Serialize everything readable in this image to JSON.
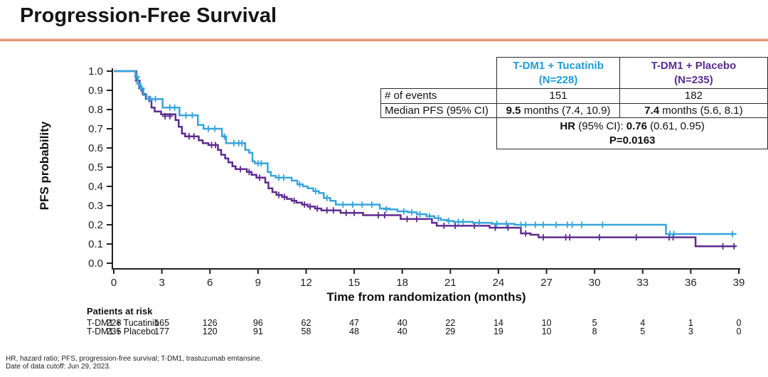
{
  "slide": {
    "title": "Progression-Free Survival",
    "accent_color": "#d98560",
    "footnotes": [
      "HR, hazard ratio; PFS, progression-free survival; T-DM1, trastuzumab emtansine.",
      "Date of data cutoff: Jun 29, 2023."
    ]
  },
  "stats_table": {
    "col_headers": [
      {
        "lines": [
          "T-DM1 + Tucatinib",
          "(N=228)"
        ],
        "color": "#1e9cd7"
      },
      {
        "lines": [
          "T-DM1 + Placebo",
          "(N=235)"
        ],
        "color": "#5c2d91"
      }
    ],
    "rows": [
      {
        "label": "# of events",
        "values": [
          [
            {
              "t": "151"
            }
          ],
          [
            {
              "t": "182"
            }
          ]
        ]
      },
      {
        "label": "Median PFS (95% CI)",
        "values": [
          [
            {
              "t": "9.5",
              "b": 1
            },
            {
              "t": " months (7.4, 10.9)"
            }
          ],
          [
            {
              "t": "7.4",
              "b": 1
            },
            {
              "t": " months (5.6, 8.1)"
            }
          ]
        ]
      }
    ],
    "footer_lines": [
      [
        {
          "t": "HR",
          "b": 1
        },
        {
          "t": " (95% CI): "
        },
        {
          "t": "0.76",
          "b": 1
        },
        {
          "t": " (0.61, 0.95)"
        }
      ],
      [
        {
          "t": "P=0.0163",
          "b": 1
        }
      ]
    ]
  },
  "chart_data": {
    "type": "line",
    "subtype": "kaplan-meier-step",
    "title": "Progression-Free Survival",
    "xlabel": "Time from randomization (months)",
    "ylabel": "PFS probability",
    "xlim": [
      0,
      39
    ],
    "ylim": [
      0.0,
      1.0
    ],
    "x_ticks": [
      0,
      3,
      6,
      9,
      12,
      15,
      18,
      21,
      24,
      27,
      30,
      33,
      36,
      39
    ],
    "y_ticks": [
      "1.0",
      "0.9",
      "0.8",
      "0.7",
      "0.6",
      "0.5",
      "0.4",
      "0.3",
      "0.2",
      "0.1",
      "0.0"
    ],
    "grid": false,
    "legend": "none (identified in stats table and risk table)",
    "axis_color": "#231f20",
    "series": [
      {
        "name": "T-DM1 + Tucatinib",
        "n": 228,
        "events": 151,
        "median_pfs_months": 9.5,
        "median_ci": [
          7.4,
          10.9
        ],
        "color": "#38a4db",
        "steps": [
          [
            0,
            1.0
          ],
          [
            1.2,
            1.0
          ],
          [
            1.35,
            0.97
          ],
          [
            1.5,
            0.935
          ],
          [
            1.65,
            0.91
          ],
          [
            1.85,
            0.875
          ],
          [
            2.05,
            0.855
          ],
          [
            3.05,
            0.81
          ],
          [
            4.1,
            0.77
          ],
          [
            5.25,
            0.72
          ],
          [
            5.6,
            0.7
          ],
          [
            6.75,
            0.66
          ],
          [
            7.0,
            0.625
          ],
          [
            8.2,
            0.59
          ],
          [
            8.45,
            0.575
          ],
          [
            8.65,
            0.53
          ],
          [
            8.8,
            0.52
          ],
          [
            9.6,
            0.475
          ],
          [
            9.8,
            0.455
          ],
          [
            10.1,
            0.445
          ],
          [
            11.1,
            0.43
          ],
          [
            11.45,
            0.41
          ],
          [
            11.8,
            0.4
          ],
          [
            12.1,
            0.39
          ],
          [
            12.45,
            0.375
          ],
          [
            12.8,
            0.365
          ],
          [
            13.1,
            0.34
          ],
          [
            13.5,
            0.325
          ],
          [
            13.85,
            0.305
          ],
          [
            16.6,
            0.285
          ],
          [
            17.2,
            0.28
          ],
          [
            17.7,
            0.27
          ],
          [
            18.35,
            0.265
          ],
          [
            18.9,
            0.255
          ],
          [
            19.5,
            0.245
          ],
          [
            20.0,
            0.235
          ],
          [
            20.4,
            0.225
          ],
          [
            20.8,
            0.22
          ],
          [
            21.2,
            0.215
          ],
          [
            22.4,
            0.21
          ],
          [
            23.6,
            0.205
          ],
          [
            25.0,
            0.2
          ],
          [
            34.45,
            0.152
          ],
          [
            38.85,
            0.152
          ]
        ],
        "censors": [
          [
            1.45,
            0.97
          ],
          [
            1.55,
            0.935
          ],
          [
            1.75,
            0.91
          ],
          [
            2.3,
            0.855
          ],
          [
            2.6,
            0.855
          ],
          [
            3.5,
            0.81
          ],
          [
            3.8,
            0.81
          ],
          [
            4.5,
            0.77
          ],
          [
            4.9,
            0.77
          ],
          [
            5.9,
            0.7
          ],
          [
            6.3,
            0.7
          ],
          [
            6.9,
            0.66
          ],
          [
            7.5,
            0.625
          ],
          [
            7.8,
            0.625
          ],
          [
            8.0,
            0.625
          ],
          [
            9.0,
            0.52
          ],
          [
            9.2,
            0.52
          ],
          [
            10.3,
            0.445
          ],
          [
            10.6,
            0.445
          ],
          [
            11.6,
            0.41
          ],
          [
            12.6,
            0.375
          ],
          [
            13.3,
            0.34
          ],
          [
            14.3,
            0.305
          ],
          [
            14.9,
            0.305
          ],
          [
            15.5,
            0.305
          ],
          [
            16.1,
            0.305
          ],
          [
            17.0,
            0.28
          ],
          [
            18.1,
            0.27
          ],
          [
            18.6,
            0.265
          ],
          [
            19.1,
            0.255
          ],
          [
            19.7,
            0.245
          ],
          [
            20.25,
            0.235
          ],
          [
            20.9,
            0.22
          ],
          [
            21.5,
            0.215
          ],
          [
            21.8,
            0.215
          ],
          [
            22.8,
            0.21
          ],
          [
            23.9,
            0.205
          ],
          [
            24.5,
            0.205
          ],
          [
            25.4,
            0.2
          ],
          [
            25.7,
            0.2
          ],
          [
            26.3,
            0.2
          ],
          [
            26.8,
            0.2
          ],
          [
            27.6,
            0.2
          ],
          [
            28.3,
            0.2
          ],
          [
            28.6,
            0.2
          ],
          [
            29.2,
            0.2
          ],
          [
            30.5,
            0.2
          ],
          [
            34.7,
            0.152
          ],
          [
            34.95,
            0.152
          ],
          [
            38.6,
            0.152
          ]
        ]
      },
      {
        "name": "T-DM1 + Placebo",
        "n": 235,
        "events": 182,
        "median_pfs_months": 7.4,
        "median_ci": [
          5.6,
          8.1
        ],
        "color": "#5e2c8f",
        "steps": [
          [
            0,
            1.0
          ],
          [
            1.2,
            1.0
          ],
          [
            1.4,
            0.95
          ],
          [
            1.6,
            0.91
          ],
          [
            1.8,
            0.88
          ],
          [
            2.0,
            0.855
          ],
          [
            2.35,
            0.81
          ],
          [
            2.55,
            0.79
          ],
          [
            2.95,
            0.775
          ],
          [
            3.85,
            0.745
          ],
          [
            4.05,
            0.71
          ],
          [
            4.25,
            0.675
          ],
          [
            4.45,
            0.66
          ],
          [
            5.3,
            0.64
          ],
          [
            5.55,
            0.625
          ],
          [
            5.9,
            0.615
          ],
          [
            6.5,
            0.59
          ],
          [
            6.7,
            0.565
          ],
          [
            6.95,
            0.545
          ],
          [
            7.15,
            0.525
          ],
          [
            7.4,
            0.505
          ],
          [
            7.6,
            0.49
          ],
          [
            8.3,
            0.475
          ],
          [
            8.6,
            0.46
          ],
          [
            8.9,
            0.445
          ],
          [
            9.45,
            0.42
          ],
          [
            9.65,
            0.39
          ],
          [
            9.9,
            0.37
          ],
          [
            10.15,
            0.355
          ],
          [
            10.5,
            0.345
          ],
          [
            10.8,
            0.335
          ],
          [
            11.1,
            0.325
          ],
          [
            11.4,
            0.315
          ],
          [
            11.75,
            0.305
          ],
          [
            12.1,
            0.295
          ],
          [
            12.55,
            0.285
          ],
          [
            12.95,
            0.275
          ],
          [
            14.15,
            0.262
          ],
          [
            15.55,
            0.25
          ],
          [
            17.9,
            0.23
          ],
          [
            19.85,
            0.21
          ],
          [
            20.15,
            0.195
          ],
          [
            23.45,
            0.185
          ],
          [
            25.4,
            0.155
          ],
          [
            26.0,
            0.148
          ],
          [
            26.5,
            0.135
          ],
          [
            36.3,
            0.088
          ],
          [
            38.8,
            0.088
          ]
        ],
        "censors": [
          [
            1.5,
            0.95
          ],
          [
            1.7,
            0.91
          ],
          [
            2.2,
            0.855
          ],
          [
            3.2,
            0.765
          ],
          [
            3.5,
            0.765
          ],
          [
            4.7,
            0.66
          ],
          [
            5.0,
            0.66
          ],
          [
            6.1,
            0.615
          ],
          [
            6.35,
            0.615
          ],
          [
            7.9,
            0.49
          ],
          [
            8.45,
            0.475
          ],
          [
            9.1,
            0.445
          ],
          [
            10.3,
            0.355
          ],
          [
            10.65,
            0.345
          ],
          [
            11.25,
            0.325
          ],
          [
            11.9,
            0.305
          ],
          [
            12.25,
            0.295
          ],
          [
            12.7,
            0.285
          ],
          [
            13.3,
            0.275
          ],
          [
            13.7,
            0.275
          ],
          [
            14.5,
            0.262
          ],
          [
            15.0,
            0.262
          ],
          [
            16.5,
            0.25
          ],
          [
            16.9,
            0.25
          ],
          [
            18.3,
            0.23
          ],
          [
            18.9,
            0.23
          ],
          [
            20.6,
            0.195
          ],
          [
            21.3,
            0.195
          ],
          [
            22.5,
            0.195
          ],
          [
            23.8,
            0.185
          ],
          [
            24.6,
            0.185
          ],
          [
            25.7,
            0.155
          ],
          [
            26.8,
            0.135
          ],
          [
            28.2,
            0.135
          ],
          [
            28.45,
            0.135
          ],
          [
            30.3,
            0.135
          ],
          [
            32.6,
            0.135
          ],
          [
            34.65,
            0.135
          ],
          [
            34.9,
            0.135
          ],
          [
            38.0,
            0.088
          ],
          [
            38.7,
            0.088
          ]
        ]
      }
    ],
    "hr_text": "HR (95% CI): 0.76 (0.61, 0.95)",
    "p_value": "P=0.0163"
  },
  "risk_table": {
    "heading": "Patients at risk",
    "times": [
      0,
      3,
      6,
      9,
      12,
      15,
      18,
      21,
      24,
      27,
      30,
      33,
      36,
      39
    ],
    "rows": [
      {
        "label": "T-DM1 + Tucatinib",
        "counts": [
          228,
          165,
          126,
          96,
          62,
          47,
          40,
          22,
          14,
          10,
          5,
          4,
          1,
          0
        ]
      },
      {
        "label": "T-DM1 + Placebo",
        "counts": [
          235,
          177,
          120,
          91,
          58,
          48,
          40,
          29,
          19,
          10,
          8,
          5,
          3,
          0
        ]
      }
    ]
  }
}
